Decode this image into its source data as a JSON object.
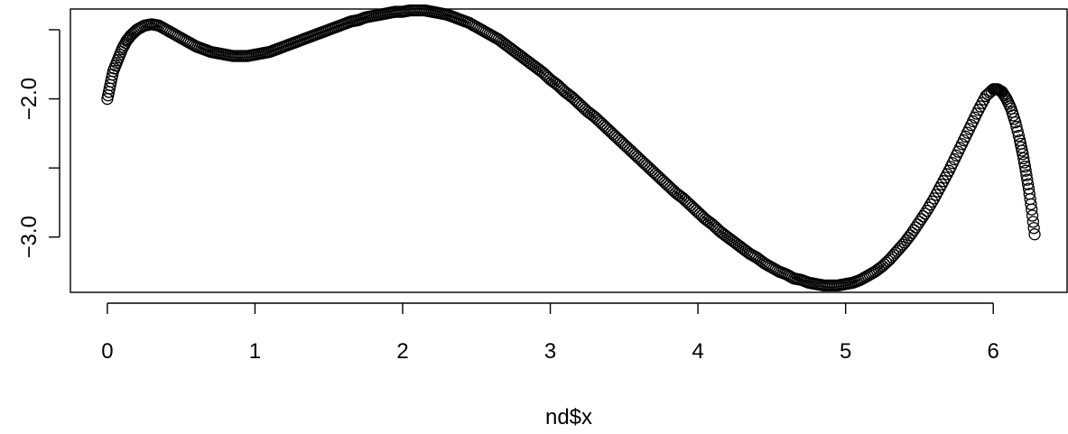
{
  "chart_data": {
    "type": "scatter",
    "title": "",
    "xlabel": "nd$x",
    "ylabel": "",
    "xlim": [
      -0.25,
      6.5
    ],
    "ylim": [
      -3.4,
      -1.35
    ],
    "x_ticks": [
      0,
      1,
      2,
      3,
      4,
      5,
      6
    ],
    "x_tick_labels": [
      "0",
      "1",
      "2",
      "3",
      "4",
      "5",
      "6"
    ],
    "y_ticks": [
      -3.0,
      -2.5,
      -2.0,
      -1.5
    ],
    "y_tick_labels": [
      "−3.0",
      "",
      "−2.0",
      ""
    ],
    "grid": false,
    "legend": "none",
    "marker": "open-circle",
    "series": [
      {
        "x": [
          0.0,
          0.02,
          0.04,
          0.07,
          0.1,
          0.13,
          0.16,
          0.2,
          0.25,
          0.3,
          0.35,
          0.4,
          0.45,
          0.5,
          0.55,
          0.6,
          0.65,
          0.7,
          0.75,
          0.8,
          0.85,
          0.9,
          0.95,
          1.0,
          1.05,
          1.1,
          1.15,
          1.2,
          1.25,
          1.3,
          1.35,
          1.4,
          1.45,
          1.5,
          1.55,
          1.6,
          1.65,
          1.7,
          1.75,
          1.8,
          1.85,
          1.9,
          1.95,
          2.0,
          2.05,
          2.1,
          2.15,
          2.2,
          2.25,
          2.3,
          2.35,
          2.4,
          2.45,
          2.5,
          2.55,
          2.6,
          2.65,
          2.7,
          2.75,
          2.8,
          2.85,
          2.9,
          2.95,
          3.0,
          3.05,
          3.1,
          3.15,
          3.2,
          3.25,
          3.3,
          3.35,
          3.4,
          3.45,
          3.5,
          3.55,
          3.6,
          3.65,
          3.7,
          3.75,
          3.8,
          3.85,
          3.9,
          3.95,
          4.0,
          4.05,
          4.1,
          4.15,
          4.2,
          4.25,
          4.3,
          4.35,
          4.4,
          4.45,
          4.5,
          4.55,
          4.6,
          4.65,
          4.7,
          4.75,
          4.8,
          4.85,
          4.9,
          4.95,
          5.0,
          5.05,
          5.1,
          5.15,
          5.2,
          5.25,
          5.3,
          5.35,
          5.4,
          5.45,
          5.5,
          5.55,
          5.6,
          5.65,
          5.7,
          5.75,
          5.8,
          5.85,
          5.9,
          5.95,
          6.0,
          6.03,
          6.06,
          6.09,
          6.12,
          6.15,
          6.18,
          6.2,
          6.22,
          6.24,
          6.26,
          6.28
        ],
        "y": [
          -2.0,
          -1.9,
          -1.8,
          -1.72,
          -1.64,
          -1.58,
          -1.54,
          -1.5,
          -1.47,
          -1.46,
          -1.47,
          -1.5,
          -1.53,
          -1.56,
          -1.59,
          -1.62,
          -1.64,
          -1.66,
          -1.67,
          -1.68,
          -1.69,
          -1.69,
          -1.69,
          -1.68,
          -1.67,
          -1.66,
          -1.64,
          -1.62,
          -1.6,
          -1.58,
          -1.56,
          -1.54,
          -1.52,
          -1.5,
          -1.48,
          -1.46,
          -1.44,
          -1.43,
          -1.41,
          -1.4,
          -1.39,
          -1.38,
          -1.37,
          -1.37,
          -1.36,
          -1.36,
          -1.36,
          -1.37,
          -1.38,
          -1.39,
          -1.41,
          -1.43,
          -1.45,
          -1.48,
          -1.51,
          -1.54,
          -1.57,
          -1.61,
          -1.65,
          -1.69,
          -1.73,
          -1.77,
          -1.81,
          -1.86,
          -1.9,
          -1.95,
          -1.99,
          -2.04,
          -2.09,
          -2.13,
          -2.18,
          -2.23,
          -2.28,
          -2.33,
          -2.38,
          -2.43,
          -2.48,
          -2.53,
          -2.58,
          -2.63,
          -2.68,
          -2.72,
          -2.77,
          -2.82,
          -2.87,
          -2.91,
          -2.96,
          -3.0,
          -3.04,
          -3.08,
          -3.12,
          -3.15,
          -3.19,
          -3.22,
          -3.25,
          -3.27,
          -3.3,
          -3.31,
          -3.33,
          -3.34,
          -3.35,
          -3.35,
          -3.35,
          -3.34,
          -3.33,
          -3.31,
          -3.28,
          -3.25,
          -3.21,
          -3.16,
          -3.1,
          -3.04,
          -2.97,
          -2.89,
          -2.81,
          -2.72,
          -2.62,
          -2.52,
          -2.41,
          -2.3,
          -2.19,
          -2.08,
          -1.98,
          -1.93,
          -1.93,
          -1.95,
          -2.0,
          -2.07,
          -2.17,
          -2.3,
          -2.4,
          -2.52,
          -2.65,
          -2.8,
          -2.98
        ]
      }
    ]
  }
}
